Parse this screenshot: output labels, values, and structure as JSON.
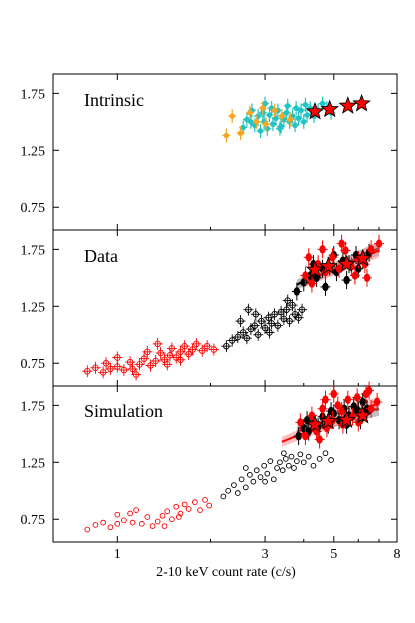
{
  "figure": {
    "xlabel": "2-10 keV count rate (c/s)",
    "xscale": "log",
    "xlim": [
      0.62,
      8.0
    ],
    "ylim": [
      0.55,
      1.92
    ],
    "x_ticks": [
      1,
      3,
      5,
      8
    ],
    "x_tick_labels": [
      "1",
      "3",
      "5",
      "8"
    ],
    "y_ticks": [
      0.75,
      1.25,
      1.75
    ],
    "y_tick_labels": [
      "0.75",
      "1.25",
      "1.75"
    ]
  },
  "colors": {
    "red": "#ff0000",
    "black": "#000000",
    "cyan": "#20c4c4",
    "orange": "#f5a623",
    "fit_band_black": "#8a8a8a",
    "fit_band_red": "#ff9090"
  },
  "chart_data": [
    {
      "type": "scatter",
      "title": "Intrinsic",
      "series": [
        {
          "marker": "cyan-errorbar-dot",
          "points": [
            [
              2.55,
              1.45
            ],
            [
              2.62,
              1.52
            ],
            [
              2.7,
              1.5
            ],
            [
              2.78,
              1.47
            ],
            [
              2.85,
              1.55
            ],
            [
              2.9,
              1.42
            ],
            [
              2.98,
              1.5
            ],
            [
              3.05,
              1.44
            ],
            [
              3.1,
              1.56
            ],
            [
              3.18,
              1.48
            ],
            [
              3.25,
              1.53
            ],
            [
              3.3,
              1.6
            ],
            [
              3.38,
              1.46
            ],
            [
              3.45,
              1.52
            ],
            [
              3.52,
              1.58
            ],
            [
              3.6,
              1.5
            ],
            [
              3.68,
              1.55
            ],
            [
              3.75,
              1.47
            ],
            [
              3.85,
              1.53
            ],
            [
              3.92,
              1.6
            ],
            [
              4.0,
              1.5
            ],
            [
              4.1,
              1.56
            ],
            [
              4.2,
              1.62
            ],
            [
              4.32,
              1.55
            ],
            [
              4.45,
              1.6
            ],
            [
              4.6,
              1.66
            ],
            [
              4.75,
              1.62
            ],
            [
              4.9,
              1.58
            ],
            [
              3.15,
              1.62
            ],
            [
              3.55,
              1.64
            ],
            [
              2.95,
              1.58
            ],
            [
              3.35,
              1.44
            ],
            [
              3.78,
              1.62
            ],
            [
              4.05,
              1.65
            ],
            [
              2.72,
              1.6
            ],
            [
              3.0,
              1.66
            ]
          ]
        },
        {
          "marker": "orange-errorbar-dot",
          "points": [
            [
              2.25,
              1.38
            ],
            [
              2.35,
              1.55
            ],
            [
              2.5,
              1.4
            ],
            [
              2.68,
              1.58
            ],
            [
              2.82,
              1.5
            ],
            [
              2.95,
              1.62
            ],
            [
              3.02,
              1.48
            ],
            [
              3.22,
              1.6
            ],
            [
              3.4,
              1.55
            ],
            [
              3.62,
              1.52
            ]
          ]
        },
        {
          "marker": "red-star",
          "points": [
            [
              4.35,
              1.59
            ],
            [
              4.85,
              1.61
            ],
            [
              5.55,
              1.64
            ],
            [
              6.15,
              1.66
            ]
          ]
        }
      ]
    },
    {
      "type": "scatter",
      "title": "Data",
      "fits": [
        {
          "color": "black",
          "x": [
            3.8,
            7.0
          ],
          "y": [
            1.44,
            1.76
          ]
        },
        {
          "color": "red",
          "x": [
            4.0,
            7.0
          ],
          "y": [
            1.46,
            1.74
          ]
        }
      ],
      "series": [
        {
          "marker": "red-open-cross",
          "points": [
            [
              0.8,
              0.68
            ],
            [
              0.85,
              0.71
            ],
            [
              0.9,
              0.67
            ],
            [
              0.95,
              0.7
            ],
            [
              1.0,
              0.72
            ],
            [
              1.05,
              0.69
            ],
            [
              1.1,
              0.76
            ],
            [
              1.12,
              0.7
            ],
            [
              1.18,
              0.74
            ],
            [
              1.22,
              0.79
            ],
            [
              1.28,
              0.73
            ],
            [
              1.33,
              0.77
            ],
            [
              1.38,
              0.84
            ],
            [
              1.42,
              0.78
            ],
            [
              1.48,
              0.82
            ],
            [
              1.5,
              0.88
            ],
            [
              1.55,
              0.8
            ],
            [
              1.6,
              0.85
            ],
            [
              1.65,
              0.9
            ],
            [
              1.7,
              0.83
            ],
            [
              1.75,
              0.87
            ],
            [
              1.8,
              0.92
            ],
            [
              1.88,
              0.86
            ],
            [
              1.95,
              0.9
            ],
            [
              2.05,
              0.87
            ],
            [
              1.0,
              0.8
            ],
            [
              1.25,
              0.85
            ],
            [
              1.45,
              0.74
            ],
            [
              1.15,
              0.65
            ],
            [
              0.92,
              0.75
            ],
            [
              1.6,
              0.78
            ],
            [
              1.35,
              0.92
            ]
          ]
        },
        {
          "marker": "black-open-cross",
          "points": [
            [
              2.25,
              0.9
            ],
            [
              2.35,
              0.95
            ],
            [
              2.45,
              0.98
            ],
            [
              2.55,
              1.02
            ],
            [
              2.62,
              0.97
            ],
            [
              2.7,
              1.05
            ],
            [
              2.78,
              1.08
            ],
            [
              2.85,
              1.0
            ],
            [
              2.92,
              1.12
            ],
            [
              3.0,
              1.06
            ],
            [
              3.08,
              1.15
            ],
            [
              3.15,
              1.1
            ],
            [
              3.22,
              1.18
            ],
            [
              3.3,
              1.08
            ],
            [
              3.38,
              1.2
            ],
            [
              3.45,
              1.14
            ],
            [
              3.52,
              1.22
            ],
            [
              3.6,
              1.12
            ],
            [
              3.68,
              1.26
            ],
            [
              3.75,
              1.18
            ],
            [
              3.85,
              1.15
            ],
            [
              3.95,
              1.22
            ],
            [
              2.5,
              1.12
            ],
            [
              2.8,
              1.18
            ],
            [
              3.1,
              1.02
            ],
            [
              3.55,
              1.3
            ],
            [
              2.65,
              1.22
            ]
          ]
        },
        {
          "marker": "black-filled",
          "points": [
            [
              3.8,
              1.38
            ],
            [
              4.0,
              1.46
            ],
            [
              4.2,
              1.52
            ],
            [
              4.4,
              1.5
            ],
            [
              4.6,
              1.58
            ],
            [
              4.85,
              1.6
            ],
            [
              5.1,
              1.55
            ],
            [
              5.35,
              1.65
            ],
            [
              5.6,
              1.62
            ],
            [
              5.9,
              1.7
            ],
            [
              6.2,
              1.66
            ],
            [
              6.5,
              1.72
            ],
            [
              4.3,
              1.62
            ],
            [
              5.0,
              1.7
            ],
            [
              5.5,
              1.48
            ],
            [
              6.0,
              1.58
            ],
            [
              4.7,
              1.42
            ]
          ]
        },
        {
          "marker": "red-filled",
          "points": [
            [
              4.05,
              1.52
            ],
            [
              4.25,
              1.45
            ],
            [
              4.45,
              1.62
            ],
            [
              4.7,
              1.55
            ],
            [
              4.95,
              1.68
            ],
            [
              5.2,
              1.58
            ],
            [
              5.45,
              1.74
            ],
            [
              5.7,
              1.6
            ],
            [
              6.0,
              1.66
            ],
            [
              6.3,
              1.62
            ],
            [
              6.6,
              1.75
            ],
            [
              7.0,
              1.8
            ],
            [
              4.6,
              1.75
            ],
            [
              5.3,
              1.8
            ],
            [
              5.85,
              1.52
            ],
            [
              4.15,
              1.68
            ],
            [
              6.4,
              1.5
            ]
          ]
        },
        {
          "marker": "red-star",
          "points": [
            [
              4.35,
              1.57
            ],
            [
              4.8,
              1.6
            ],
            [
              5.5,
              1.62
            ],
            [
              6.2,
              1.67
            ]
          ]
        }
      ]
    },
    {
      "type": "scatter",
      "title": "Simulation",
      "fits": [
        {
          "color": "black",
          "x": [
            3.8,
            7.0
          ],
          "y": [
            1.52,
            1.72
          ]
        },
        {
          "color": "red",
          "x": [
            3.4,
            7.0
          ],
          "y": [
            1.43,
            1.77
          ]
        }
      ],
      "series": [
        {
          "marker": "red-open-circle",
          "points": [
            [
              0.8,
              0.66
            ],
            [
              0.85,
              0.7
            ],
            [
              0.9,
              0.72
            ],
            [
              0.95,
              0.68
            ],
            [
              1.0,
              0.79
            ],
            [
              1.05,
              0.74
            ],
            [
              1.1,
              0.8
            ],
            [
              1.15,
              0.83
            ],
            [
              1.2,
              0.71
            ],
            [
              1.25,
              0.77
            ],
            [
              1.3,
              0.69
            ],
            [
              1.35,
              0.73
            ],
            [
              1.4,
              0.78
            ],
            [
              1.45,
              0.82
            ],
            [
              1.5,
              0.75
            ],
            [
              1.55,
              0.86
            ],
            [
              1.6,
              0.8
            ],
            [
              1.65,
              0.88
            ],
            [
              1.7,
              0.84
            ],
            [
              1.78,
              0.9
            ],
            [
              1.85,
              0.83
            ],
            [
              1.92,
              0.92
            ],
            [
              1.98,
              0.87
            ],
            [
              1.0,
              0.71
            ],
            [
              1.12,
              0.72
            ],
            [
              1.42,
              0.69
            ],
            [
              1.58,
              0.77
            ]
          ]
        },
        {
          "marker": "black-open-circle",
          "points": [
            [
              2.2,
              0.95
            ],
            [
              2.28,
              1.0
            ],
            [
              2.38,
              1.05
            ],
            [
              2.45,
              0.98
            ],
            [
              2.52,
              1.1
            ],
            [
              2.6,
              1.03
            ],
            [
              2.68,
              1.14
            ],
            [
              2.75,
              1.08
            ],
            [
              2.82,
              1.18
            ],
            [
              2.9,
              1.12
            ],
            [
              2.98,
              1.22
            ],
            [
              3.05,
              1.15
            ],
            [
              3.12,
              1.26
            ],
            [
              3.2,
              1.1
            ],
            [
              3.28,
              1.2
            ],
            [
              3.35,
              1.25
            ],
            [
              3.42,
              1.18
            ],
            [
              3.5,
              1.28
            ],
            [
              3.58,
              1.22
            ],
            [
              3.65,
              1.3
            ],
            [
              3.72,
              1.2
            ],
            [
              3.8,
              1.26
            ],
            [
              3.9,
              1.32
            ],
            [
              4.0,
              1.25
            ],
            [
              4.15,
              1.3
            ],
            [
              4.3,
              1.22
            ],
            [
              4.5,
              1.28
            ],
            [
              4.7,
              1.33
            ],
            [
              4.9,
              1.27
            ],
            [
              2.6,
              1.2
            ],
            [
              3.0,
              1.08
            ],
            [
              3.45,
              1.33
            ]
          ]
        },
        {
          "marker": "black-filled",
          "points": [
            [
              3.85,
              1.48
            ],
            [
              4.0,
              1.55
            ],
            [
              4.15,
              1.52
            ],
            [
              4.3,
              1.6
            ],
            [
              4.45,
              1.56
            ],
            [
              4.6,
              1.65
            ],
            [
              4.8,
              1.58
            ],
            [
              5.0,
              1.68
            ],
            [
              5.2,
              1.62
            ],
            [
              5.4,
              1.72
            ],
            [
              5.6,
              1.66
            ],
            [
              5.8,
              1.74
            ],
            [
              6.0,
              1.7
            ],
            [
              6.2,
              1.78
            ],
            [
              6.4,
              1.72
            ],
            [
              4.1,
              1.62
            ],
            [
              4.9,
              1.7
            ],
            [
              5.5,
              1.58
            ],
            [
              6.1,
              1.62
            ]
          ]
        },
        {
          "marker": "red-filled",
          "points": [
            [
              3.9,
              1.6
            ],
            [
              4.05,
              1.48
            ],
            [
              4.25,
              1.66
            ],
            [
              4.4,
              1.52
            ],
            [
              4.6,
              1.72
            ],
            [
              4.75,
              1.55
            ],
            [
              4.95,
              1.62
            ],
            [
              5.15,
              1.75
            ],
            [
              5.35,
              1.58
            ],
            [
              5.55,
              1.8
            ],
            [
              5.75,
              1.65
            ],
            [
              5.95,
              1.82
            ],
            [
              6.15,
              1.68
            ],
            [
              6.35,
              1.85
            ],
            [
              6.6,
              1.72
            ],
            [
              6.9,
              1.78
            ],
            [
              5.0,
              1.85
            ],
            [
              4.5,
              1.45
            ],
            [
              6.0,
              1.6
            ],
            [
              5.3,
              1.7
            ],
            [
              4.7,
              1.8
            ],
            [
              6.5,
              1.88
            ]
          ]
        },
        {
          "marker": "red-star",
          "points": [
            [
              4.35,
              1.58
            ],
            [
              4.8,
              1.61
            ],
            [
              5.5,
              1.62
            ],
            [
              6.2,
              1.66
            ]
          ]
        }
      ]
    }
  ]
}
